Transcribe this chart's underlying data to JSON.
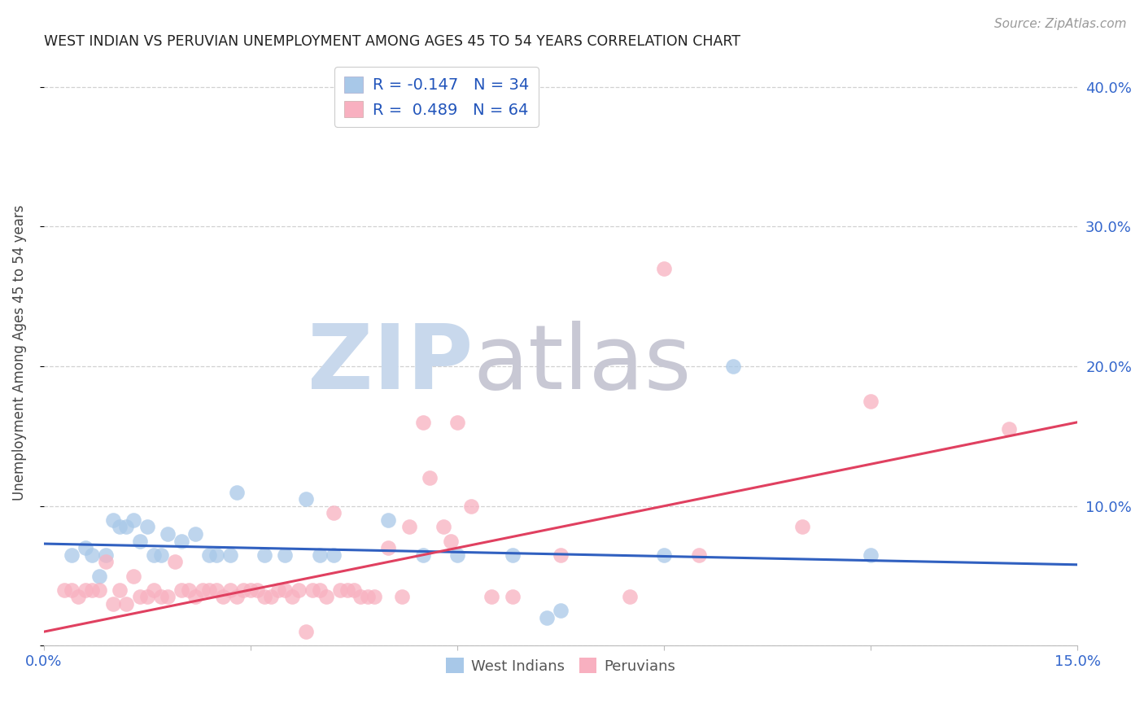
{
  "title": "WEST INDIAN VS PERUVIAN UNEMPLOYMENT AMONG AGES 45 TO 54 YEARS CORRELATION CHART",
  "source": "Source: ZipAtlas.com",
  "ylabel": "Unemployment Among Ages 45 to 54 years",
  "xlim": [
    0.0,
    0.15
  ],
  "ylim": [
    0.0,
    0.42
  ],
  "xtick_vals": [
    0.0,
    0.03,
    0.06,
    0.09,
    0.12,
    0.15
  ],
  "ytick_vals": [
    0.0,
    0.1,
    0.2,
    0.3,
    0.4
  ],
  "west_indian_color": "#a8c8e8",
  "peruvian_color": "#f8b0c0",
  "west_indian_line_color": "#3060c0",
  "peruvian_line_color": "#e04060",
  "legend_text_color": "#2255bb",
  "title_color": "#222222",
  "axis_label_color": "#444444",
  "tick_color": "#3366cc",
  "grid_color": "#cccccc",
  "watermark_zip": "ZIP",
  "watermark_atlas": "atlas",
  "watermark_color": "#ccd8e8",
  "west_indian_R": -0.147,
  "west_indian_N": 34,
  "peruvian_R": 0.489,
  "peruvian_N": 64,
  "west_indian_scatter": [
    [
      0.004,
      0.065
    ],
    [
      0.006,
      0.07
    ],
    [
      0.007,
      0.065
    ],
    [
      0.008,
      0.05
    ],
    [
      0.009,
      0.065
    ],
    [
      0.01,
      0.09
    ],
    [
      0.011,
      0.085
    ],
    [
      0.012,
      0.085
    ],
    [
      0.013,
      0.09
    ],
    [
      0.014,
      0.075
    ],
    [
      0.015,
      0.085
    ],
    [
      0.016,
      0.065
    ],
    [
      0.017,
      0.065
    ],
    [
      0.018,
      0.08
    ],
    [
      0.02,
      0.075
    ],
    [
      0.022,
      0.08
    ],
    [
      0.024,
      0.065
    ],
    [
      0.025,
      0.065
    ],
    [
      0.027,
      0.065
    ],
    [
      0.028,
      0.11
    ],
    [
      0.032,
      0.065
    ],
    [
      0.035,
      0.065
    ],
    [
      0.038,
      0.105
    ],
    [
      0.04,
      0.065
    ],
    [
      0.042,
      0.065
    ],
    [
      0.05,
      0.09
    ],
    [
      0.055,
      0.065
    ],
    [
      0.06,
      0.065
    ],
    [
      0.068,
      0.065
    ],
    [
      0.073,
      0.02
    ],
    [
      0.075,
      0.025
    ],
    [
      0.09,
      0.065
    ],
    [
      0.1,
      0.2
    ],
    [
      0.12,
      0.065
    ]
  ],
  "peruvian_scatter": [
    [
      0.003,
      0.04
    ],
    [
      0.004,
      0.04
    ],
    [
      0.005,
      0.035
    ],
    [
      0.006,
      0.04
    ],
    [
      0.007,
      0.04
    ],
    [
      0.008,
      0.04
    ],
    [
      0.009,
      0.06
    ],
    [
      0.01,
      0.03
    ],
    [
      0.011,
      0.04
    ],
    [
      0.012,
      0.03
    ],
    [
      0.013,
      0.05
    ],
    [
      0.014,
      0.035
    ],
    [
      0.015,
      0.035
    ],
    [
      0.016,
      0.04
    ],
    [
      0.017,
      0.035
    ],
    [
      0.018,
      0.035
    ],
    [
      0.019,
      0.06
    ],
    [
      0.02,
      0.04
    ],
    [
      0.021,
      0.04
    ],
    [
      0.022,
      0.035
    ],
    [
      0.023,
      0.04
    ],
    [
      0.024,
      0.04
    ],
    [
      0.025,
      0.04
    ],
    [
      0.026,
      0.035
    ],
    [
      0.027,
      0.04
    ],
    [
      0.028,
      0.035
    ],
    [
      0.029,
      0.04
    ],
    [
      0.03,
      0.04
    ],
    [
      0.031,
      0.04
    ],
    [
      0.032,
      0.035
    ],
    [
      0.033,
      0.035
    ],
    [
      0.034,
      0.04
    ],
    [
      0.035,
      0.04
    ],
    [
      0.036,
      0.035
    ],
    [
      0.037,
      0.04
    ],
    [
      0.038,
      0.01
    ],
    [
      0.039,
      0.04
    ],
    [
      0.04,
      0.04
    ],
    [
      0.041,
      0.035
    ],
    [
      0.042,
      0.095
    ],
    [
      0.043,
      0.04
    ],
    [
      0.044,
      0.04
    ],
    [
      0.045,
      0.04
    ],
    [
      0.046,
      0.035
    ],
    [
      0.047,
      0.035
    ],
    [
      0.048,
      0.035
    ],
    [
      0.05,
      0.07
    ],
    [
      0.052,
      0.035
    ],
    [
      0.053,
      0.085
    ],
    [
      0.055,
      0.16
    ],
    [
      0.056,
      0.12
    ],
    [
      0.058,
      0.085
    ],
    [
      0.059,
      0.075
    ],
    [
      0.06,
      0.16
    ],
    [
      0.062,
      0.1
    ],
    [
      0.065,
      0.035
    ],
    [
      0.068,
      0.035
    ],
    [
      0.075,
      0.065
    ],
    [
      0.085,
      0.035
    ],
    [
      0.09,
      0.27
    ],
    [
      0.095,
      0.065
    ],
    [
      0.11,
      0.085
    ],
    [
      0.12,
      0.175
    ],
    [
      0.14,
      0.155
    ]
  ],
  "wi_line_x": [
    0.0,
    0.15
  ],
  "wi_line_y": [
    0.073,
    0.058
  ],
  "pe_line_x": [
    0.0,
    0.15
  ],
  "pe_line_y": [
    0.01,
    0.16
  ]
}
